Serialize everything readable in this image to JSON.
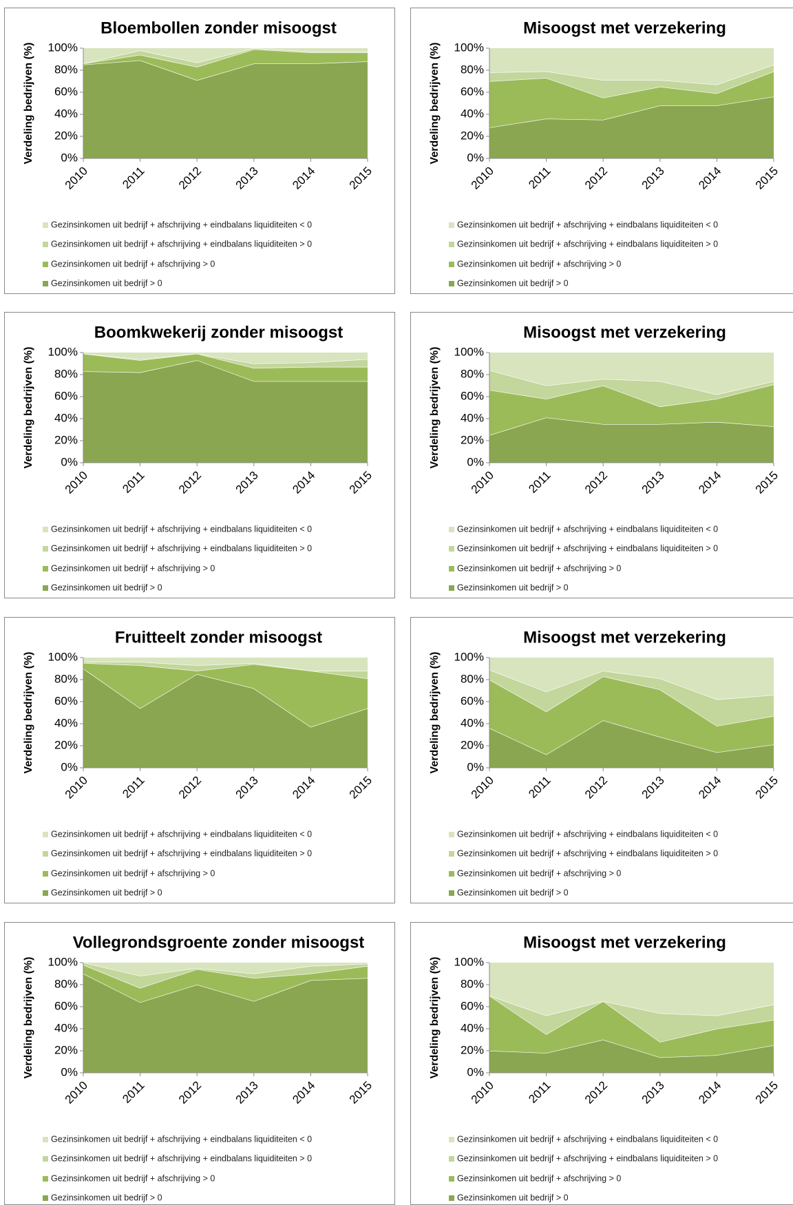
{
  "chart_data": [
    {
      "type": "stacked_area",
      "title": "Bloembollen zonder misoogst",
      "y_label": "Verdeling bedrijven (%)",
      "categories": [
        "2010",
        "2011",
        "2012",
        "2013",
        "2014",
        "2015"
      ],
      "ylim": [
        0,
        100
      ],
      "yticks": [
        {
          "value": 0,
          "label": "0%"
        },
        {
          "value": 20,
          "label": "20%"
        },
        {
          "value": 40,
          "label": "40%"
        },
        {
          "value": 60,
          "label": "60%"
        },
        {
          "value": 80,
          "label": "80%"
        },
        {
          "value": 100,
          "label": "100%"
        }
      ],
      "series": [
        {
          "name": "Gezinsinkomen uit bedrijf  > 0",
          "color": "#8aa650",
          "values": [
            85,
            89,
            71,
            86,
            86,
            88
          ]
        },
        {
          "name": "Gezinsinkomen uit bedrijf  + afschrijving > 0",
          "color": "#9bbb59",
          "values": [
            1,
            5,
            12,
            13,
            10,
            8
          ]
        },
        {
          "name": "Gezinsinkomen uit bedrijf + afschrijving + eindbalans liquiditeiten > 0",
          "color": "#c3d69b",
          "values": [
            0,
            4,
            4,
            1,
            1,
            1
          ]
        },
        {
          "name": "Gezinsinkomen uit bedrijf + afschrijving + eindbalans liquiditeiten < 0",
          "color": "#d7e4bd",
          "values": [
            14,
            2,
            13,
            0,
            3,
            3
          ]
        }
      ]
    },
    {
      "type": "stacked_area",
      "title": "Misoogst met verzekering",
      "y_label": "Verdeling bedrijven (%)",
      "categories": [
        "2010",
        "2011",
        "2012",
        "2013",
        "2014",
        "2015"
      ],
      "ylim": [
        0,
        100
      ],
      "yticks": [
        {
          "value": 0,
          "label": "0%"
        },
        {
          "value": 20,
          "label": "20%"
        },
        {
          "value": 40,
          "label": "40%"
        },
        {
          "value": 60,
          "label": "60%"
        },
        {
          "value": 80,
          "label": "80%"
        },
        {
          "value": 100,
          "label": "100%"
        }
      ],
      "series": [
        {
          "name": "Gezinsinkomen uit bedrijf  > 0",
          "color": "#8aa650",
          "values": [
            28,
            36,
            35,
            48,
            48,
            56
          ]
        },
        {
          "name": "Gezinsinkomen uit bedrijf  + afschrijving > 0",
          "color": "#9bbb59",
          "values": [
            42,
            37,
            20,
            17,
            11,
            23
          ]
        },
        {
          "name": "Gezinsinkomen uit bedrijf + afschrijving + eindbalans liquiditeiten > 0",
          "color": "#c3d69b",
          "values": [
            8,
            6,
            16,
            6,
            8,
            6
          ]
        },
        {
          "name": "Gezinsinkomen uit bedrijf + afschrijving + eindbalans liquiditeiten < 0",
          "color": "#d7e4bd",
          "values": [
            22,
            21,
            29,
            29,
            33,
            15
          ]
        }
      ]
    },
    {
      "type": "stacked_area",
      "title": "Boomkwekerij zonder misoogst",
      "y_label": "Verdeling bedrijven (%)",
      "categories": [
        "2010",
        "2011",
        "2012",
        "2013",
        "2014",
        "2015"
      ],
      "ylim": [
        0,
        100
      ],
      "yticks": [
        {
          "value": 0,
          "label": "0%"
        },
        {
          "value": 20,
          "label": "20%"
        },
        {
          "value": 40,
          "label": "40%"
        },
        {
          "value": 60,
          "label": "60%"
        },
        {
          "value": 80,
          "label": "80%"
        },
        {
          "value": 100,
          "label": "100%"
        }
      ],
      "series": [
        {
          "name": "Gezinsinkomen uit bedrijf  > 0",
          "color": "#8aa650",
          "values": [
            83,
            82,
            93,
            74,
            74,
            74
          ]
        },
        {
          "name": "Gezinsinkomen uit bedrijf  + afschrijving > 0",
          "color": "#9bbb59",
          "values": [
            16,
            11,
            6,
            12,
            13,
            13
          ]
        },
        {
          "name": "Gezinsinkomen uit bedrijf + afschrijving + eindbalans liquiditeiten > 0",
          "color": "#c3d69b",
          "values": [
            0,
            1,
            0,
            4,
            4,
            7
          ]
        },
        {
          "name": "Gezinsinkomen uit bedrijf + afschrijving + eindbalans liquiditeiten < 0",
          "color": "#d7e4bd",
          "values": [
            1,
            6,
            1,
            10,
            9,
            6
          ]
        }
      ]
    },
    {
      "type": "stacked_area",
      "title": "Misoogst met verzekering",
      "y_label": "Verdeling bedrijven (%)",
      "categories": [
        "2010",
        "2011",
        "2012",
        "2013",
        "2014",
        "2015"
      ],
      "ylim": [
        0,
        100
      ],
      "yticks": [
        {
          "value": 0,
          "label": "0%"
        },
        {
          "value": 20,
          "label": "20%"
        },
        {
          "value": 40,
          "label": "40%"
        },
        {
          "value": 60,
          "label": "60%"
        },
        {
          "value": 80,
          "label": "80%"
        },
        {
          "value": 100,
          "label": "100%"
        }
      ],
      "series": [
        {
          "name": "Gezinsinkomen uit bedrijf  > 0",
          "color": "#8aa650",
          "values": [
            25,
            41,
            35,
            35,
            37,
            33
          ]
        },
        {
          "name": "Gezinsinkomen uit bedrijf  + afschrijving > 0",
          "color": "#9bbb59",
          "values": [
            41,
            17,
            35,
            16,
            21,
            38
          ]
        },
        {
          "name": "Gezinsinkomen uit bedrijf + afschrijving + eindbalans liquiditeiten > 0",
          "color": "#c3d69b",
          "values": [
            18,
            12,
            6,
            23,
            4,
            3
          ]
        },
        {
          "name": "Gezinsinkomen uit bedrijf + afschrijving + eindbalans liquiditeiten < 0",
          "color": "#d7e4bd",
          "values": [
            16,
            30,
            24,
            26,
            38,
            26
          ]
        }
      ]
    },
    {
      "type": "stacked_area",
      "title": "Fruitteelt zonder misoogst",
      "y_label": "Verdeling bedrijven (%)",
      "categories": [
        "2010",
        "2011",
        "2012",
        "2013",
        "2014",
        "2015"
      ],
      "ylim": [
        0,
        100
      ],
      "yticks": [
        {
          "value": 0,
          "label": "0%"
        },
        {
          "value": 20,
          "label": "20%"
        },
        {
          "value": 40,
          "label": "40%"
        },
        {
          "value": 60,
          "label": "60%"
        },
        {
          "value": 80,
          "label": "80%"
        },
        {
          "value": 100,
          "label": "100%"
        }
      ],
      "series": [
        {
          "name": "Gezinsinkomen uit bedrijf  > 0",
          "color": "#8aa650",
          "values": [
            90,
            54,
            85,
            72,
            37,
            54
          ]
        },
        {
          "name": "Gezinsinkomen uit bedrijf  + afschrijving > 0",
          "color": "#9bbb59",
          "values": [
            5,
            39,
            3,
            22,
            51,
            27
          ]
        },
        {
          "name": "Gezinsinkomen uit bedrijf + afschrijving + eindbalans liquiditeiten > 0",
          "color": "#c3d69b",
          "values": [
            1,
            3,
            5,
            1,
            0,
            7
          ]
        },
        {
          "name": "Gezinsinkomen uit bedrijf + afschrijving + eindbalans liquiditeiten < 0",
          "color": "#d7e4bd",
          "values": [
            4,
            4,
            7,
            5,
            12,
            12
          ]
        }
      ]
    },
    {
      "type": "stacked_area",
      "title": "Misoogst met verzekering",
      "y_label": "Verdeling bedrijven (%)",
      "categories": [
        "2010",
        "2011",
        "2012",
        "2013",
        "2014",
        "2015"
      ],
      "ylim": [
        0,
        100
      ],
      "yticks": [
        {
          "value": 0,
          "label": "0%"
        },
        {
          "value": 20,
          "label": "20%"
        },
        {
          "value": 40,
          "label": "40%"
        },
        {
          "value": 60,
          "label": "60%"
        },
        {
          "value": 80,
          "label": "80%"
        },
        {
          "value": 100,
          "label": "100%"
        }
      ],
      "series": [
        {
          "name": "Gezinsinkomen uit bedrijf  > 0",
          "color": "#8aa650",
          "values": [
            36,
            12,
            43,
            28,
            14,
            21
          ]
        },
        {
          "name": "Gezinsinkomen uit bedrijf  + afschrijving > 0",
          "color": "#9bbb59",
          "values": [
            44,
            39,
            40,
            43,
            24,
            26
          ]
        },
        {
          "name": "Gezinsinkomen uit bedrijf + afschrijving + eindbalans liquiditeiten > 0",
          "color": "#c3d69b",
          "values": [
            9,
            18,
            5,
            10,
            24,
            19
          ]
        },
        {
          "name": "Gezinsinkomen uit bedrijf + afschrijving + eindbalans liquiditeiten < 0",
          "color": "#d7e4bd",
          "values": [
            11,
            31,
            12,
            19,
            38,
            34
          ]
        }
      ]
    },
    {
      "type": "stacked_area",
      "title": "Vollegrondsgroente zonder misoogst",
      "y_label": "Verdeling bedrijven (%)",
      "categories": [
        "2010",
        "2011",
        "2012",
        "2013",
        "2014",
        "2015"
      ],
      "ylim": [
        0,
        100
      ],
      "yticks": [
        {
          "value": 0,
          "label": "0%"
        },
        {
          "value": 20,
          "label": "20%"
        },
        {
          "value": 40,
          "label": "40%"
        },
        {
          "value": 60,
          "label": "60%"
        },
        {
          "value": 80,
          "label": "80%"
        },
        {
          "value": 100,
          "label": "100%"
        }
      ],
      "series": [
        {
          "name": "Gezinsinkomen uit bedrijf  > 0",
          "color": "#8aa650",
          "values": [
            90,
            64,
            80,
            65,
            84,
            86
          ]
        },
        {
          "name": "Gezinsinkomen uit bedrijf  + afschrijving > 0",
          "color": "#9bbb59",
          "values": [
            8,
            13,
            14,
            21,
            6,
            11
          ]
        },
        {
          "name": "Gezinsinkomen uit bedrijf + afschrijving + eindbalans liquiditeiten > 0",
          "color": "#c3d69b",
          "values": [
            2,
            11,
            1,
            4,
            7,
            2
          ]
        },
        {
          "name": "Gezinsinkomen uit bedrijf + afschrijving + eindbalans liquiditeiten < 0",
          "color": "#d7e4bd",
          "values": [
            0,
            12,
            5,
            10,
            3,
            1
          ]
        }
      ]
    },
    {
      "type": "stacked_area",
      "title": "Misoogst met verzekering",
      "y_label": "Verdeling bedrijven (%)",
      "categories": [
        "2010",
        "2011",
        "2012",
        "2013",
        "2014",
        "2015"
      ],
      "ylim": [
        0,
        100
      ],
      "yticks": [
        {
          "value": 0,
          "label": "0%"
        },
        {
          "value": 20,
          "label": "20%"
        },
        {
          "value": 40,
          "label": "40%"
        },
        {
          "value": 60,
          "label": "60%"
        },
        {
          "value": 80,
          "label": "80%"
        },
        {
          "value": 100,
          "label": "100%"
        }
      ],
      "series": [
        {
          "name": "Gezinsinkomen uit bedrijf  > 0",
          "color": "#8aa650",
          "values": [
            20,
            18,
            30,
            14,
            16,
            25
          ]
        },
        {
          "name": "Gezinsinkomen uit bedrijf  + afschrijving > 0",
          "color": "#9bbb59",
          "values": [
            50,
            17,
            35,
            14,
            24,
            23
          ]
        },
        {
          "name": "Gezinsinkomen uit bedrijf + afschrijving + eindbalans liquiditeiten > 0",
          "color": "#c3d69b",
          "values": [
            0,
            17,
            0,
            26,
            12,
            14
          ]
        },
        {
          "name": "Gezinsinkomen uit bedrijf + afschrijving + eindbalans liquiditeiten < 0",
          "color": "#d7e4bd",
          "values": [
            30,
            48,
            35,
            46,
            48,
            38
          ]
        }
      ]
    }
  ]
}
